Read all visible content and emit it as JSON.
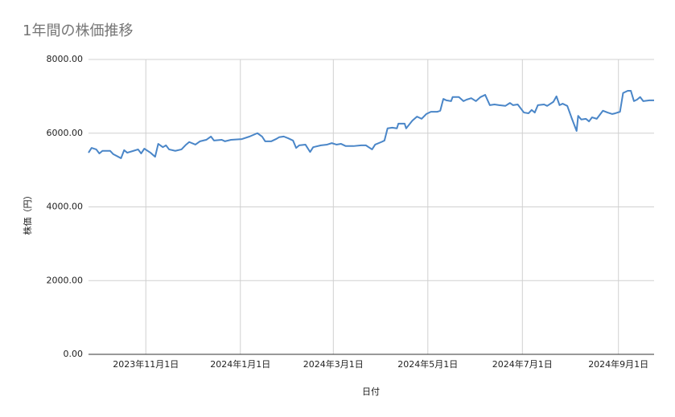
{
  "chart_data": {
    "type": "line",
    "title": "1年間の株価推移",
    "x_label": "日付",
    "y_label": "株価（円）",
    "color": "#4a86c8",
    "grid": true,
    "x": [
      "2023-09-25",
      "2023-09-27",
      "2023-09-30",
      "2023-10-02",
      "2023-10-04",
      "2023-10-09",
      "2023-10-11",
      "2023-10-16",
      "2023-10-18",
      "2023-10-20",
      "2023-10-24",
      "2023-10-27",
      "2023-10-29",
      "2023-10-31",
      "2023-11-04",
      "2023-11-07",
      "2023-11-09",
      "2023-11-12",
      "2023-11-14",
      "2023-11-16",
      "2023-11-20",
      "2023-11-24",
      "2023-11-27",
      "2023-11-29",
      "2023-12-03",
      "2023-12-06",
      "2023-12-10",
      "2023-12-13",
      "2023-12-15",
      "2023-12-20",
      "2023-12-22",
      "2023-12-26",
      "2024-01-02",
      "2024-01-07",
      "2024-01-12",
      "2024-01-15",
      "2024-01-17",
      "2024-01-21",
      "2024-01-24",
      "2024-01-26",
      "2024-01-29",
      "2024-02-01",
      "2024-02-04",
      "2024-02-06",
      "2024-02-08",
      "2024-02-12",
      "2024-02-15",
      "2024-02-17",
      "2024-02-22",
      "2024-02-26",
      "2024-02-29",
      "2024-03-03",
      "2024-03-06",
      "2024-03-09",
      "2024-03-14",
      "2024-03-19",
      "2024-03-22",
      "2024-03-26",
      "2024-03-28",
      "2024-04-01",
      "2024-04-03",
      "2024-04-05",
      "2024-04-08",
      "2024-04-11",
      "2024-04-12",
      "2024-04-16",
      "2024-04-17",
      "2024-04-21",
      "2024-04-24",
      "2024-04-27",
      "2024-04-30",
      "2024-05-03",
      "2024-05-07",
      "2024-05-09",
      "2024-05-11",
      "2024-05-13",
      "2024-05-16",
      "2024-05-17",
      "2024-05-21",
      "2024-05-24",
      "2024-05-26",
      "2024-05-29",
      "2024-06-01",
      "2024-06-04",
      "2024-06-07",
      "2024-06-10",
      "2024-06-13",
      "2024-06-16",
      "2024-06-20",
      "2024-06-23",
      "2024-06-25",
      "2024-06-28",
      "2024-07-02",
      "2024-07-05",
      "2024-07-07",
      "2024-07-09",
      "2024-07-11",
      "2024-07-15",
      "2024-07-17",
      "2024-07-21",
      "2024-07-23",
      "2024-07-25",
      "2024-07-27",
      "2024-07-30",
      "2024-08-02",
      "2024-08-05",
      "2024-08-06",
      "2024-08-08",
      "2024-08-11",
      "2024-08-13",
      "2024-08-15",
      "2024-08-18",
      "2024-08-22",
      "2024-08-25",
      "2024-08-28",
      "2024-08-30",
      "2024-09-02",
      "2024-09-04",
      "2024-09-07",
      "2024-09-09",
      "2024-09-11",
      "2024-09-13",
      "2024-09-15",
      "2024-09-17",
      "2024-09-21",
      "2024-09-24"
    ],
    "values": [
      5470,
      5600,
      5560,
      5450,
      5520,
      5520,
      5430,
      5320,
      5540,
      5470,
      5520,
      5560,
      5450,
      5580,
      5470,
      5360,
      5710,
      5620,
      5670,
      5560,
      5520,
      5560,
      5690,
      5760,
      5690,
      5780,
      5820,
      5910,
      5800,
      5820,
      5780,
      5820,
      5840,
      5910,
      6000,
      5910,
      5780,
      5780,
      5840,
      5890,
      5910,
      5860,
      5800,
      5600,
      5670,
      5690,
      5490,
      5620,
      5670,
      5690,
      5730,
      5690,
      5710,
      5650,
      5650,
      5670,
      5670,
      5560,
      5690,
      5760,
      5800,
      6130,
      6150,
      6130,
      6260,
      6260,
      6130,
      6340,
      6450,
      6390,
      6520,
      6580,
      6580,
      6610,
      6930,
      6890,
      6870,
      6980,
      6980,
      6870,
      6910,
      6950,
      6870,
      6980,
      7040,
      6760,
      6780,
      6760,
      6740,
      6820,
      6760,
      6780,
      6560,
      6540,
      6630,
      6560,
      6760,
      6780,
      6740,
      6850,
      7000,
      6760,
      6800,
      6740,
      6390,
      6060,
      6470,
      6370,
      6390,
      6320,
      6430,
      6390,
      6610,
      6560,
      6520,
      6540,
      6580,
      7090,
      7150,
      7150,
      6870,
      6910,
      6980,
      6870,
      6890,
      6890
    ],
    "xlim": [
      "2023-09-25",
      "2024-09-24"
    ],
    "xticks": [
      {
        "value": "2023-11-01",
        "label": "2023年11月1日"
      },
      {
        "value": "2024-01-01",
        "label": "2024年1月1日"
      },
      {
        "value": "2024-03-01",
        "label": "2024年3月1日"
      },
      {
        "value": "2024-05-01",
        "label": "2024年5月1日"
      },
      {
        "value": "2024-07-01",
        "label": "2024年7月1日"
      },
      {
        "value": "2024-09-01",
        "label": "2024年9月1日"
      }
    ],
    "ylim": [
      0,
      8000
    ],
    "yticks": [
      {
        "value": 0,
        "label": "0.00"
      },
      {
        "value": 2000,
        "label": "2000.00"
      },
      {
        "value": 4000,
        "label": "4000.00"
      },
      {
        "value": 6000,
        "label": "6000.00"
      },
      {
        "value": 8000,
        "label": "8000.00"
      }
    ]
  }
}
